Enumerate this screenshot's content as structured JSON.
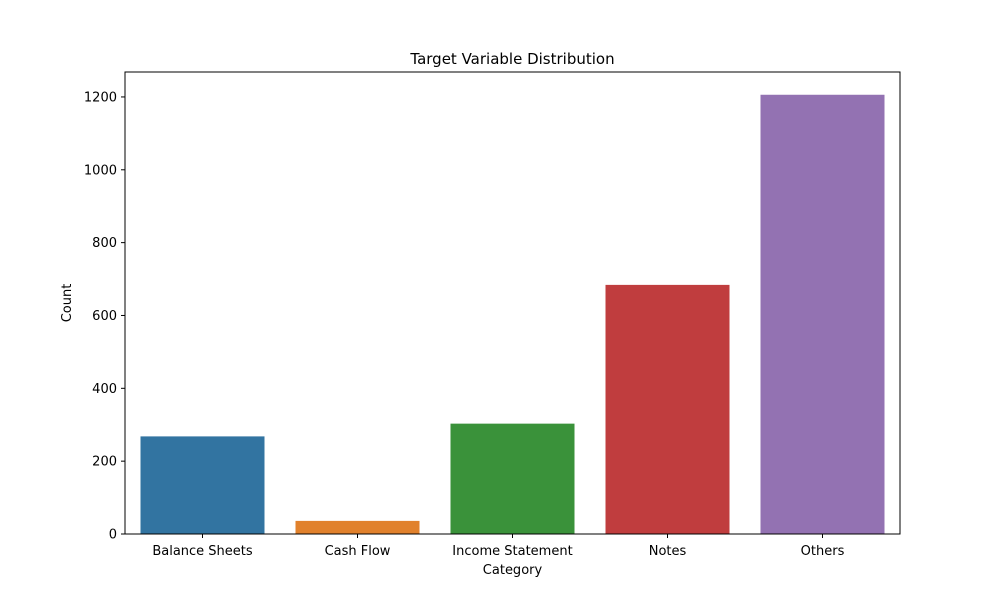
{
  "chart_data": {
    "type": "bar",
    "title": "Target Variable Distribution",
    "xlabel": "Category",
    "ylabel": "Count",
    "categories": [
      "Balance Sheets",
      "Cash Flow",
      "Income Statement",
      "Notes",
      "Others"
    ],
    "values": [
      268,
      36,
      303,
      684,
      1206
    ],
    "colors": [
      "#3274a1",
      "#e1812c",
      "#3a923a",
      "#c03d3e",
      "#9372b2"
    ],
    "ylim": [
      0,
      1268.5
    ],
    "yticks": [
      0,
      200,
      400,
      600,
      800,
      1000,
      1200
    ],
    "grid": false,
    "legend": "none"
  }
}
